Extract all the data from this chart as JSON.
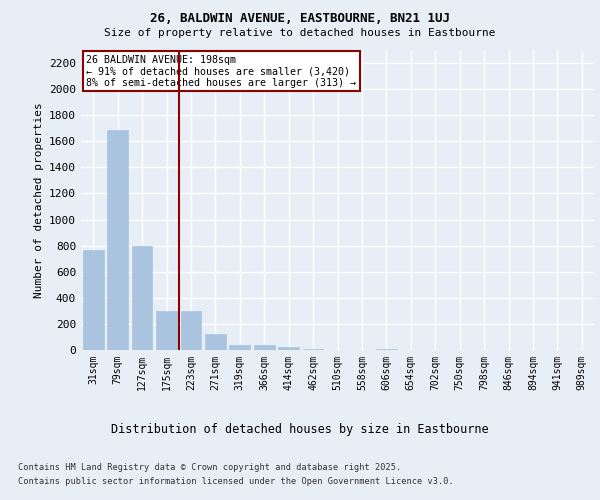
{
  "title_line1": "26, BALDWIN AVENUE, EASTBOURNE, BN21 1UJ",
  "title_line2": "Size of property relative to detached houses in Eastbourne",
  "xlabel": "Distribution of detached houses by size in Eastbourne",
  "ylabel": "Number of detached properties",
  "categories": [
    "31sqm",
    "79sqm",
    "127sqm",
    "175sqm",
    "223sqm",
    "271sqm",
    "319sqm",
    "366sqm",
    "414sqm",
    "462sqm",
    "510sqm",
    "558sqm",
    "606sqm",
    "654sqm",
    "702sqm",
    "750sqm",
    "798sqm",
    "846sqm",
    "894sqm",
    "941sqm",
    "989sqm"
  ],
  "values": [
    770,
    1690,
    800,
    300,
    300,
    120,
    40,
    35,
    25,
    10,
    0,
    0,
    10,
    0,
    0,
    0,
    0,
    0,
    0,
    0,
    0
  ],
  "bar_color": "#aac4e0",
  "bar_edge_color": "#aac4e0",
  "bg_color": "#e8eef5",
  "grid_color": "#ffffff",
  "vline_color": "#8b0000",
  "annotation_text": "26 BALDWIN AVENUE: 198sqm\n← 91% of detached houses are smaller (3,420)\n8% of semi-detached houses are larger (313) →",
  "annotation_box_color": "#ffffff",
  "annotation_border_color": "#8b0000",
  "ylim": [
    0,
    2300
  ],
  "yticks": [
    0,
    200,
    400,
    600,
    800,
    1000,
    1200,
    1400,
    1600,
    1800,
    2000,
    2200
  ],
  "footer_line1": "Contains HM Land Registry data © Crown copyright and database right 2025.",
  "footer_line2": "Contains public sector information licensed under the Open Government Licence v3.0."
}
